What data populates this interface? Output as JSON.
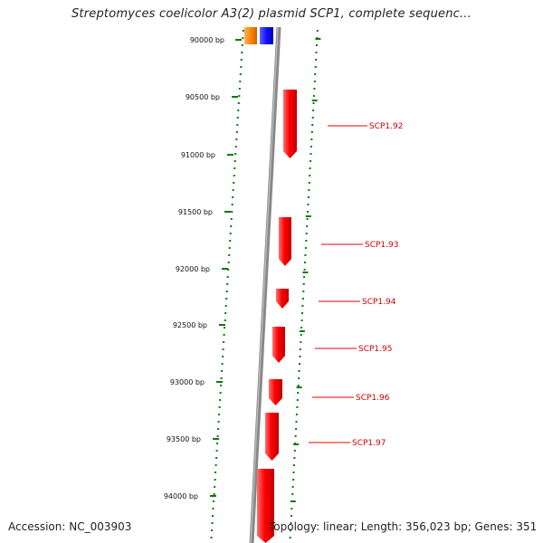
{
  "title": "Streptomyces coelicolor A3(2) plasmid SCP1, complete sequenc...",
  "footer": {
    "accession": "Accession: NC_003903",
    "summary": "Topology: linear; Length: 356,023 bp; Genes: 351"
  },
  "colors": {
    "gene": "#ee0000",
    "gene_label": "#cc0000",
    "dots": "#0a7a0a",
    "backbone": "#888888",
    "orange_feature": "#ff8800",
    "blue_feature": "#1a1aff"
  },
  "scale": {
    "ticks": [
      "90000 bp",
      "90500 bp",
      "91000 bp",
      "91500 bp",
      "92000 bp",
      "92500 bp",
      "93000 bp",
      "93500 bp",
      "94000 bp"
    ]
  },
  "genes": [
    {
      "label": "SCP1.92"
    },
    {
      "label": "SCP1.93"
    },
    {
      "label": "SCP1.94"
    },
    {
      "label": "SCP1.95"
    },
    {
      "label": "SCP1.96"
    },
    {
      "label": "SCP1.97"
    },
    {
      "label": ""
    }
  ]
}
